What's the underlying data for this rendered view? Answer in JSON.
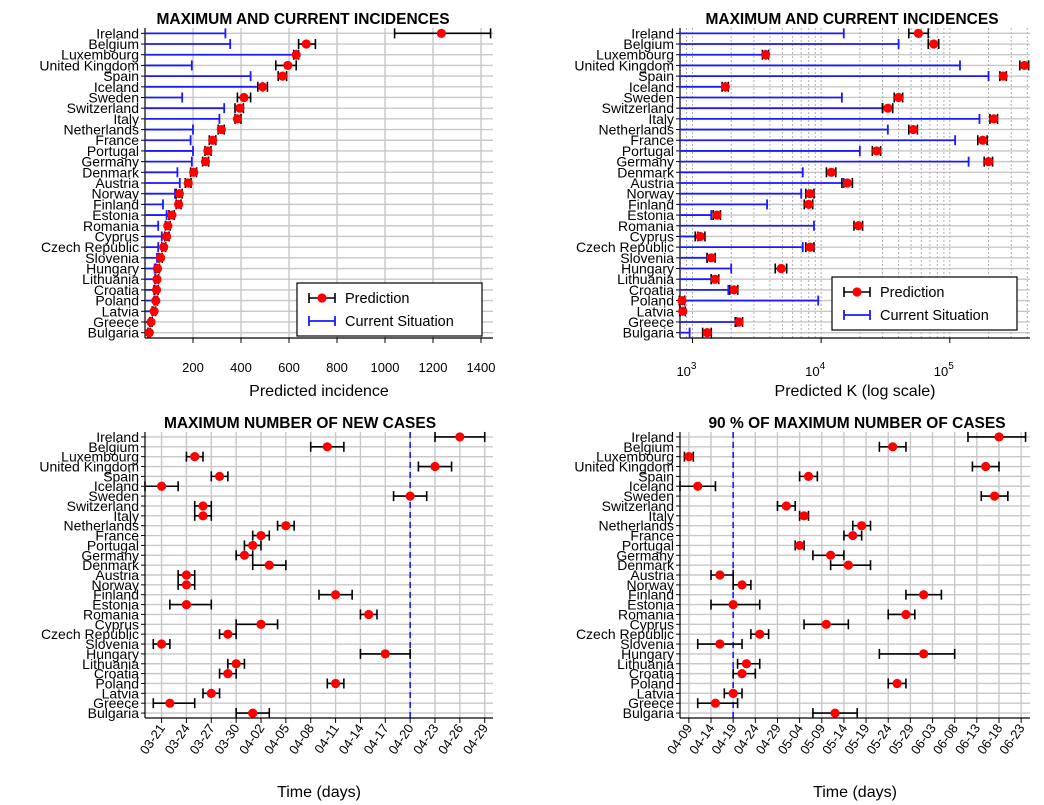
{
  "chart_data": [
    {
      "type": "errorbar-dot",
      "title": "MAXIMUM AND CURRENT INCIDENCES",
      "xlabel": "Predicted incidence",
      "xscale": "linear",
      "xlim": [
        0,
        1450
      ],
      "xticks": [
        200,
        400,
        600,
        800,
        1000,
        1200,
        1400
      ],
      "xtick_labels": [
        "200",
        "400",
        "600",
        "800",
        "1000",
        "1200",
        "1400"
      ],
      "grid": true,
      "legend": {
        "position": "bottom-right",
        "entries": [
          {
            "label": "Prediction",
            "kind": "dot-errorbar"
          },
          {
            "label": "Current Situation",
            "kind": "bar"
          }
        ]
      },
      "categories": [
        "Ireland",
        "Belgium",
        "Luxembourg",
        "United Kingdom",
        "Spain",
        "Iceland",
        "Sweden",
        "Switzerland",
        "Italy",
        "Netherlands",
        "France",
        "Portugal",
        "Germany",
        "Denmark",
        "Austria",
        "Norway",
        "Finland",
        "Estonia",
        "Romania",
        "Cyprus",
        "Czech Republic",
        "Slovenia",
        "Hungary",
        "Lithuania",
        "Croatia",
        "Poland",
        "Latvia",
        "Greece",
        "Bulgaria"
      ],
      "prediction": [
        1235,
        672,
        630,
        595,
        573,
        490,
        412,
        395,
        385,
        318,
        282,
        262,
        252,
        203,
        180,
        143,
        140,
        112,
        95,
        90,
        78,
        65,
        52,
        50,
        48,
        45,
        38,
        25,
        18
      ],
      "prediction_low": [
        1040,
        640,
        620,
        545,
        555,
        470,
        385,
        375,
        375,
        305,
        268,
        250,
        240,
        190,
        168,
        130,
        130,
        100,
        85,
        82,
        70,
        58,
        45,
        43,
        40,
        38,
        32,
        20,
        14
      ],
      "prediction_high": [
        1440,
        710,
        640,
        630,
        590,
        510,
        440,
        410,
        400,
        330,
        295,
        275,
        265,
        215,
        192,
        155,
        150,
        122,
        105,
        100,
        86,
        72,
        60,
        57,
        55,
        52,
        44,
        30,
        22
      ],
      "current": [
        335,
        355,
        630,
        195,
        440,
        490,
        155,
        330,
        310,
        200,
        190,
        200,
        195,
        135,
        145,
        125,
        75,
        90,
        55,
        70,
        55,
        50,
        40,
        42,
        38,
        45,
        30,
        20,
        12
      ]
    },
    {
      "type": "errorbar-dot",
      "title": "MAXIMUM AND CURRENT INCIDENCES",
      "xlabel": "Predicted K (log scale)",
      "xscale": "log",
      "xlim": [
        800,
        420000
      ],
      "xticks": [
        1000,
        10000,
        100000
      ],
      "xtick_labels": [
        "10^3",
        "10^4",
        "10^5"
      ],
      "grid": true,
      "legend": {
        "position": "bottom-right",
        "entries": [
          {
            "label": "Prediction",
            "kind": "dot-errorbar"
          },
          {
            "label": "Current Situation",
            "kind": "bar"
          }
        ]
      },
      "categories": [
        "Ireland",
        "Belgium",
        "Luxembourg",
        "United Kingdom",
        "Spain",
        "Iceland",
        "Sweden",
        "Switzerland",
        "Italy",
        "Netherlands",
        "France",
        "Portugal",
        "Germany",
        "Denmark",
        "Austria",
        "Norway",
        "Finland",
        "Estonia",
        "Romania",
        "Cyprus",
        "Czech Republic",
        "Slovenia",
        "Hungary",
        "Lithuania",
        "Croatia",
        "Poland",
        "Latvia",
        "Greece",
        "Bulgaria"
      ],
      "prediction": [
        57000,
        75000,
        3700,
        380000,
        260000,
        1800,
        40000,
        33000,
        220000,
        52000,
        180000,
        27000,
        200000,
        12000,
        16000,
        8200,
        8000,
        1550,
        19500,
        1150,
        8200,
        1400,
        4900,
        1500,
        2100,
        830,
        840,
        2300,
        1300
      ],
      "prediction_low": [
        48000,
        68000,
        3500,
        350000,
        245000,
        1700,
        37000,
        30000,
        205000,
        48000,
        165000,
        25000,
        185000,
        11000,
        14500,
        7600,
        7400,
        1450,
        18000,
        1050,
        7600,
        1300,
        4400,
        1400,
        1950,
        790,
        800,
        2150,
        1200
      ],
      "prediction_high": [
        68000,
        82000,
        3900,
        410000,
        275000,
        1900,
        43000,
        36000,
        235000,
        56000,
        195000,
        29000,
        215000,
        13000,
        17500,
        8800,
        8600,
        1650,
        21000,
        1250,
        8800,
        1500,
        5400,
        1600,
        2250,
        870,
        880,
        2450,
        1400
      ],
      "current": [
        15000,
        40000,
        3700,
        120000,
        200000,
        1800,
        14500,
        30000,
        170000,
        33000,
        110000,
        20000,
        140000,
        7200,
        15000,
        7000,
        3800,
        1400,
        8800,
        1100,
        7200,
        1300,
        2000,
        1400,
        1900,
        9500,
        800,
        2200,
        950
      ]
    },
    {
      "type": "errorbar-dot",
      "title": "MAXIMUM NUMBER OF NEW CASES",
      "xlabel": "Time (days)",
      "xscale": "date",
      "xlim": [
        "2020-03-19",
        "2020-04-30"
      ],
      "xticks": [
        "2020-03-21",
        "2020-03-24",
        "2020-03-27",
        "2020-03-30",
        "2020-04-02",
        "2020-04-05",
        "2020-04-08",
        "2020-04-11",
        "2020-04-14",
        "2020-04-17",
        "2020-04-20",
        "2020-04-23",
        "2020-04-26",
        "2020-04-29"
      ],
      "xtick_labels": [
        "03-21",
        "03-24",
        "03-27",
        "03-30",
        "04-02",
        "04-05",
        "04-08",
        "04-11",
        "04-14",
        "04-17",
        "04-20",
        "04-23",
        "04-26",
        "04-29"
      ],
      "reference_line": "2020-04-20",
      "grid": true,
      "categories": [
        "Ireland",
        "Belgium",
        "Luxembourg",
        "United Kingdom",
        "Spain",
        "Iceland",
        "Sweden",
        "Switzerland",
        "Italy",
        "Netherlands",
        "France",
        "Portugal",
        "Germany",
        "Denmark",
        "Austria",
        "Norway",
        "Finland",
        "Estonia",
        "Romania",
        "Cyprus",
        "Czech Republic",
        "Slovenia",
        "Hungary",
        "Lithuania",
        "Croatia",
        "Poland",
        "Latvia",
        "Greece",
        "Bulgaria"
      ],
      "prediction": [
        "2020-04-26",
        "2020-04-10",
        "2020-03-25",
        "2020-04-23",
        "2020-03-28",
        "2020-03-21",
        "2020-04-20",
        "2020-03-26",
        "2020-03-26",
        "2020-04-05",
        "2020-04-02",
        "2020-04-01",
        "2020-03-31",
        "2020-04-03",
        "2020-03-24",
        "2020-03-24",
        "2020-04-11",
        "2020-03-24",
        "2020-04-15",
        "2020-04-02",
        "2020-03-29",
        "2020-03-21",
        "2020-04-17",
        "2020-03-30",
        "2020-03-29",
        "2020-04-11",
        "2020-03-27",
        "2020-03-22",
        "2020-04-01"
      ],
      "prediction_low": [
        "2020-04-23",
        "2020-04-08",
        "2020-03-24",
        "2020-04-21",
        "2020-03-27",
        "2020-03-19",
        "2020-04-18",
        "2020-03-25",
        "2020-03-25",
        "2020-04-04",
        "2020-04-01",
        "2020-03-31",
        "2020-03-30",
        "2020-04-01",
        "2020-03-23",
        "2020-03-23",
        "2020-04-09",
        "2020-03-22",
        "2020-04-14",
        "2020-03-30",
        "2020-03-28",
        "2020-03-20",
        "2020-04-14",
        "2020-03-29",
        "2020-03-28",
        "2020-04-10",
        "2020-03-26",
        "2020-03-20",
        "2020-03-30"
      ],
      "prediction_high": [
        "2020-04-29",
        "2020-04-12",
        "2020-03-26",
        "2020-04-25",
        "2020-03-29",
        "2020-03-23",
        "2020-04-22",
        "2020-03-27",
        "2020-03-27",
        "2020-04-06",
        "2020-04-03",
        "2020-04-02",
        "2020-04-01",
        "2020-04-05",
        "2020-03-25",
        "2020-03-25",
        "2020-04-13",
        "2020-03-27",
        "2020-04-16",
        "2020-04-04",
        "2020-03-30",
        "2020-03-22",
        "2020-04-20",
        "2020-03-31",
        "2020-03-30",
        "2020-04-12",
        "2020-03-28",
        "2020-03-25",
        "2020-04-03"
      ]
    },
    {
      "type": "errorbar-dot",
      "title": "90 %  OF MAXIMUM NUMBER OF CASES",
      "xlabel": "Time (days)",
      "xscale": "date",
      "xlim": [
        "2020-04-07",
        "2020-06-25"
      ],
      "xticks": [
        "2020-04-09",
        "2020-04-14",
        "2020-04-19",
        "2020-04-24",
        "2020-04-29",
        "2020-05-04",
        "2020-05-09",
        "2020-05-14",
        "2020-05-19",
        "2020-05-24",
        "2020-05-29",
        "2020-06-03",
        "2020-06-08",
        "2020-06-13",
        "2020-06-18",
        "2020-06-23"
      ],
      "xtick_labels": [
        "04-09",
        "04-14",
        "04-19",
        "04-24",
        "04-29",
        "05-04",
        "05-09",
        "05-14",
        "05-19",
        "05-24",
        "05-29",
        "06-03",
        "06-08",
        "06-13",
        "06-18",
        "06-23"
      ],
      "reference_line": "2020-04-19",
      "grid": true,
      "categories": [
        "Ireland",
        "Belgium",
        "Luxembourg",
        "United Kingdom",
        "Spain",
        "Iceland",
        "Sweden",
        "Switzerland",
        "Italy",
        "Netherlands",
        "France",
        "Portugal",
        "Germany",
        "Denmark",
        "Austria",
        "Norway",
        "Finland",
        "Estonia",
        "Romania",
        "Cyprus",
        "Czech Republic",
        "Slovenia",
        "Hungary",
        "Lithuania",
        "Croatia",
        "Poland",
        "Latvia",
        "Greece",
        "Bulgaria"
      ],
      "prediction": [
        "2020-06-18",
        "2020-05-25",
        "2020-04-09",
        "2020-06-15",
        "2020-05-06",
        "2020-04-11",
        "2020-06-17",
        "2020-05-01",
        "2020-05-05",
        "2020-05-18",
        "2020-05-16",
        "2020-05-04",
        "2020-05-11",
        "2020-05-15",
        "2020-04-16",
        "2020-04-21",
        "2020-06-01",
        "2020-04-19",
        "2020-05-28",
        "2020-05-10",
        "2020-04-25",
        "2020-04-16",
        "2020-06-01",
        "2020-04-22",
        "2020-04-21",
        "2020-05-26",
        "2020-04-19",
        "2020-04-15",
        "2020-05-12"
      ],
      "prediction_low": [
        "2020-06-11",
        "2020-05-22",
        "2020-04-08",
        "2020-06-12",
        "2020-05-04",
        "2020-04-07",
        "2020-06-14",
        "2020-04-29",
        "2020-05-04",
        "2020-05-16",
        "2020-05-14",
        "2020-05-03",
        "2020-05-07",
        "2020-05-11",
        "2020-04-14",
        "2020-04-19",
        "2020-05-28",
        "2020-04-14",
        "2020-05-24",
        "2020-05-05",
        "2020-04-23",
        "2020-04-11",
        "2020-05-22",
        "2020-04-20",
        "2020-04-19",
        "2020-05-24",
        "2020-04-17",
        "2020-04-11",
        "2020-05-07"
      ],
      "prediction_high": [
        "2020-06-24",
        "2020-05-28",
        "2020-04-10",
        "2020-06-18",
        "2020-05-08",
        "2020-04-15",
        "2020-06-20",
        "2020-05-03",
        "2020-05-06",
        "2020-05-20",
        "2020-05-18",
        "2020-05-05",
        "2020-05-14",
        "2020-05-20",
        "2020-04-19",
        "2020-04-23",
        "2020-06-05",
        "2020-04-25",
        "2020-05-30",
        "2020-05-15",
        "2020-04-27",
        "2020-04-21",
        "2020-06-08",
        "2020-04-25",
        "2020-04-24",
        "2020-05-28",
        "2020-04-21",
        "2020-04-20",
        "2020-05-17"
      ]
    }
  ]
}
